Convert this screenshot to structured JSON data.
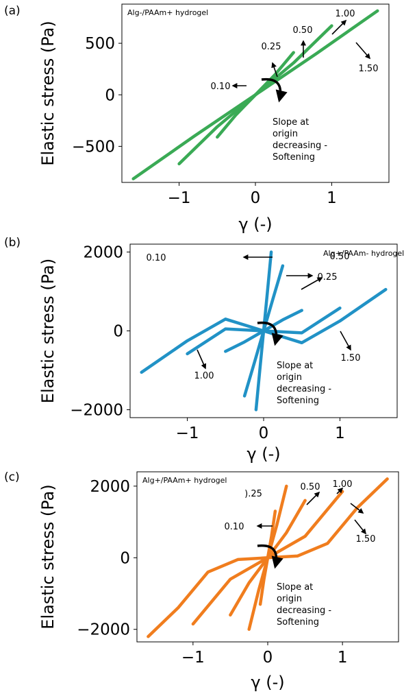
{
  "chart_data": [
    {
      "type": "line",
      "panel_label": "(a)",
      "title": "Alg-/PAAm+ hydrogel",
      "xlabel": "γ (-)",
      "ylabel": "Elastic stress (Pa)",
      "xlim": [
        -1.75,
        1.75
      ],
      "ylim": [
        -850,
        880
      ],
      "xticks": [
        -1,
        0,
        1
      ],
      "xtick_labels": [
        "−1",
        "0",
        "1"
      ],
      "yticks": [
        -500,
        0,
        500
      ],
      "ytick_labels": [
        "−500",
        "0",
        "500"
      ],
      "grid": false,
      "color": "#3aaa55",
      "series": [
        {
          "amplitude": 0.1,
          "x": [
            -0.1,
            0.1
          ],
          "y": [
            -60,
            60
          ]
        },
        {
          "amplitude": 0.25,
          "x": [
            -0.25,
            -0.12,
            0,
            0.12,
            0.25
          ],
          "y": [
            -190,
            -90,
            0,
            90,
            190
          ]
        },
        {
          "amplitude": 0.5,
          "x": [
            -0.5,
            -0.25,
            0,
            0.25,
            0.5
          ],
          "y": [
            -410,
            -190,
            0,
            190,
            410
          ]
        },
        {
          "amplitude": 1.0,
          "x": [
            -1.0,
            -0.5,
            0,
            0.5,
            1.0
          ],
          "y": [
            -670,
            -310,
            0,
            310,
            670
          ]
        },
        {
          "amplitude": 1.5,
          "x": [
            -1.6,
            -0.8,
            0,
            0.8,
            1.6
          ],
          "y": [
            -815,
            -400,
            0,
            400,
            815
          ]
        }
      ],
      "amplitude_labels": [
        "0.10",
        "0.25",
        "0.50",
        "1.00",
        "1.50"
      ],
      "annotation": "Slope at\norigin\ndecreasing -\nSoftening"
    },
    {
      "type": "line",
      "panel_label": "(b)",
      "title": "Alg+/PAAm- hydrogel",
      "xlabel": "γ (-)",
      "ylabel": "Elastic stress (Pa)",
      "xlim": [
        -1.75,
        1.75
      ],
      "ylim": [
        -2200,
        2200
      ],
      "xticks": [
        -1,
        0,
        1
      ],
      "xtick_labels": [
        "−1",
        "0",
        "1"
      ],
      "yticks": [
        -2000,
        0,
        2000
      ],
      "ytick_labels": [
        "−2000",
        "0",
        "2000"
      ],
      "grid": false,
      "color": "#2192c6",
      "series": [
        {
          "amplitude": 0.1,
          "x": [
            -0.1,
            -0.05,
            0,
            0.05,
            0.1
          ],
          "y": [
            -2000,
            -1000,
            0,
            1000,
            2000
          ]
        },
        {
          "amplitude": 0.25,
          "x": [
            -0.25,
            -0.12,
            0,
            0.12,
            0.25
          ],
          "y": [
            -1650,
            -800,
            0,
            800,
            1650
          ]
        },
        {
          "amplitude": 0.5,
          "x": [
            -0.5,
            -0.25,
            0,
            0.25,
            0.5
          ],
          "y": [
            -520,
            -280,
            0,
            280,
            520
          ]
        },
        {
          "amplitude": 1.0,
          "x": [
            -1.0,
            -0.5,
            0,
            0.5,
            1.0
          ],
          "y": [
            -580,
            50,
            0,
            -50,
            580
          ]
        },
        {
          "amplitude": 1.5,
          "x": [
            -1.6,
            -1.0,
            -0.5,
            0,
            0.5,
            1.0,
            1.6
          ],
          "y": [
            -1050,
            -250,
            300,
            0,
            -300,
            250,
            1050
          ]
        }
      ],
      "amplitude_labels": [
        "0.10",
        "0.25",
        "0.50",
        "1.00",
        "1.50"
      ],
      "annotation": "Slope at\norigin\ndecreasing -\nSoftening"
    },
    {
      "type": "line",
      "panel_label": "(c)",
      "title": "Alg+/PAAm+ hydrogel",
      "xlabel": "γ (-)",
      "ylabel": "Elastic stress (Pa)",
      "xlim": [
        -1.75,
        1.75
      ],
      "ylim": [
        -2350,
        2400
      ],
      "xticks": [
        -1,
        0,
        1
      ],
      "xtick_labels": [
        "−1",
        "0",
        "1"
      ],
      "yticks": [
        -2000,
        0,
        2000
      ],
      "ytick_labels": [
        "−2000",
        "0",
        "2000"
      ],
      "grid": false,
      "color": "#f07d1e",
      "series": [
        {
          "amplitude": 0.1,
          "x": [
            -0.1,
            -0.05,
            0,
            0.05,
            0.1
          ],
          "y": [
            -1300,
            -600,
            0,
            600,
            1300
          ]
        },
        {
          "amplitude": 0.25,
          "x": [
            -0.25,
            -0.12,
            0,
            0.12,
            0.25
          ],
          "y": [
            -2000,
            -900,
            0,
            900,
            2000
          ]
        },
        {
          "amplitude": 0.5,
          "x": [
            -0.5,
            -0.25,
            0,
            0.25,
            0.5
          ],
          "y": [
            -1600,
            -700,
            0,
            700,
            1600
          ]
        },
        {
          "amplitude": 1.0,
          "x": [
            -1.0,
            -0.5,
            0,
            0.5,
            1.0
          ],
          "y": [
            -1850,
            -600,
            0,
            600,
            1850
          ]
        },
        {
          "amplitude": 1.5,
          "x": [
            -1.6,
            -1.2,
            -0.8,
            -0.4,
            0,
            0.4,
            0.8,
            1.2,
            1.6
          ],
          "y": [
            -2200,
            -1400,
            -400,
            -50,
            0,
            50,
            400,
            1400,
            2200
          ]
        }
      ],
      "amplitude_labels": [
        ").25",
        "0.50",
        "1.00",
        "0.10",
        "1.50"
      ],
      "annotation": "Slope at\norigin\ndecreasing -\nSoftening"
    }
  ]
}
